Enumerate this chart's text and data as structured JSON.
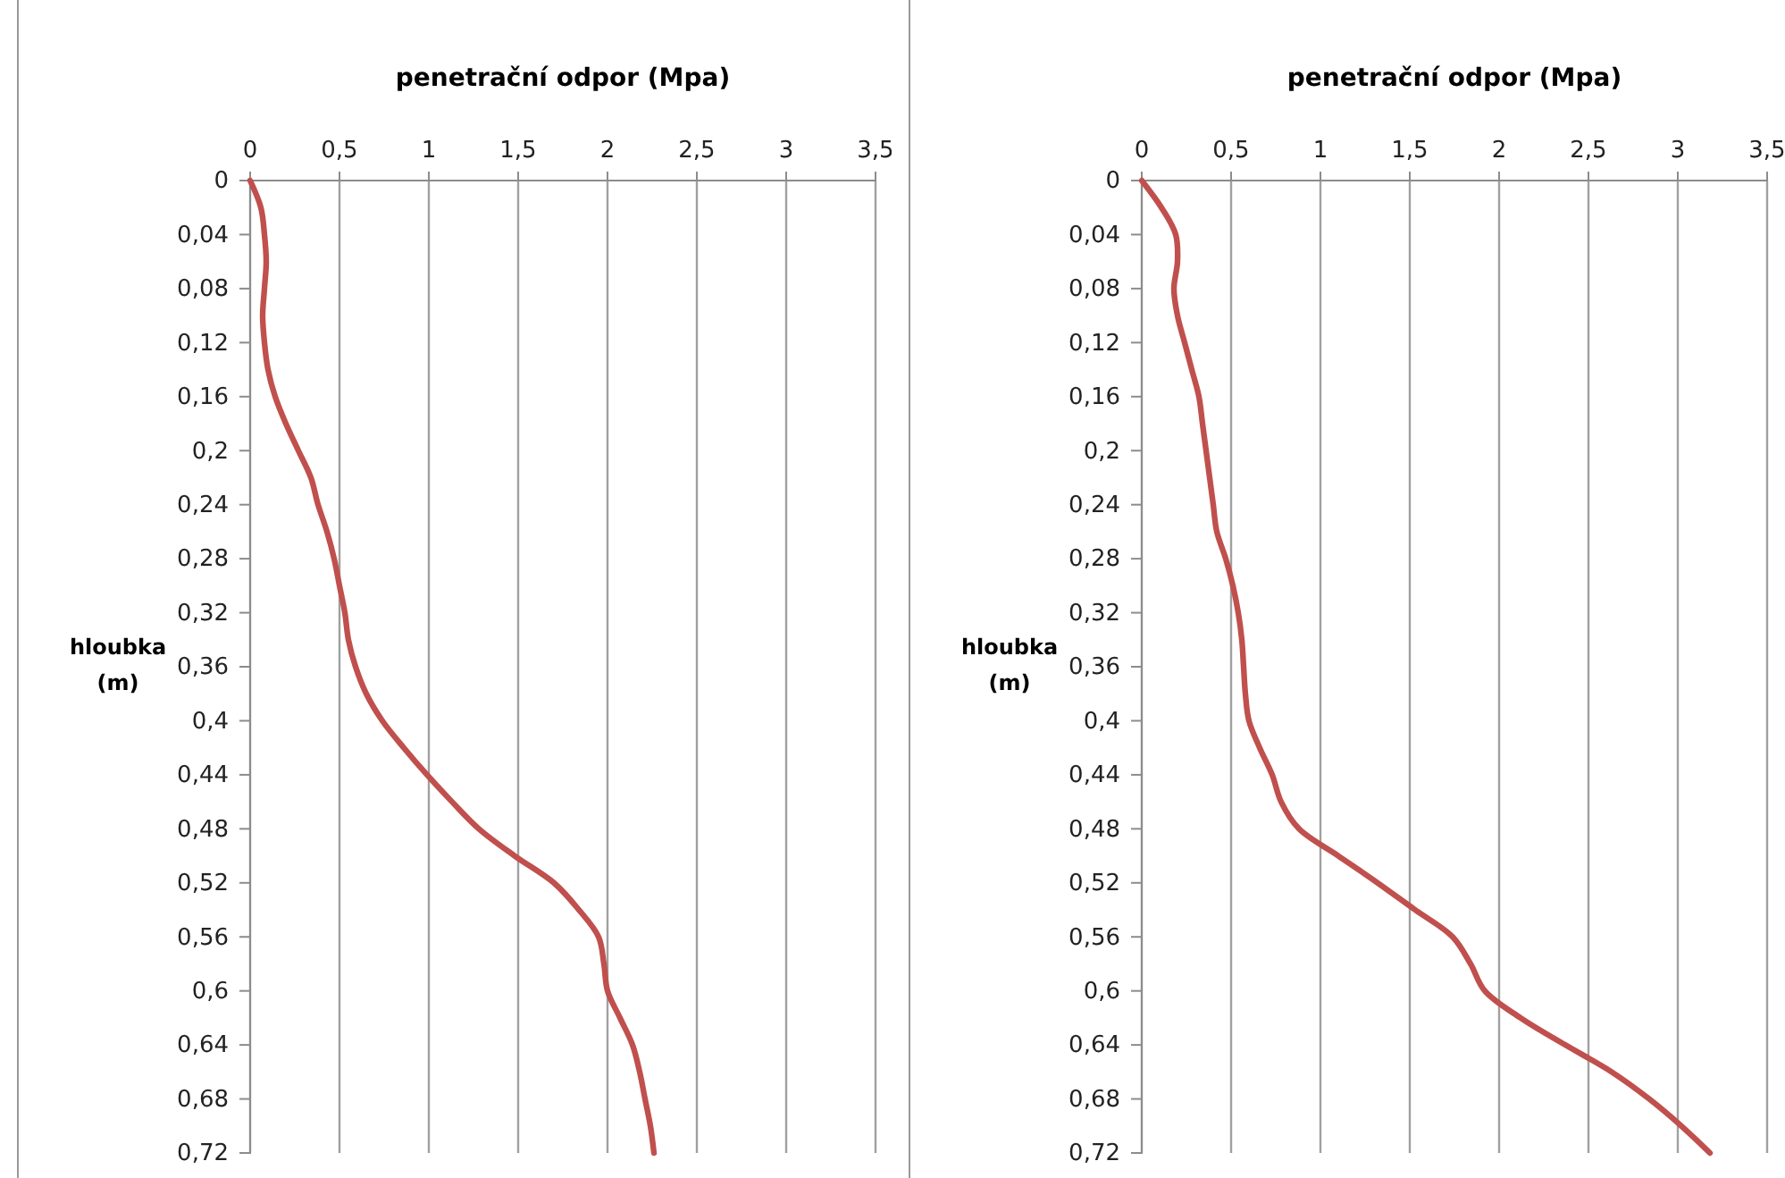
{
  "chart_data": [
    {
      "type": "line",
      "xlabel": "penetrační odpor (Mpa)",
      "ylabel": "hloubka (m)",
      "grid": "x",
      "xlim": [
        0,
        3.5
      ],
      "xticks": [
        0,
        {
          "value": 0.5,
          "label": "0,5"
        },
        1,
        {
          "value": 1.5,
          "label": "1,5"
        },
        2,
        {
          "value": 2.5,
          "label": "2,5"
        },
        3,
        {
          "value": 3.5,
          "label": "3,5"
        }
      ],
      "ylim": [
        0.72,
        0
      ],
      "yticks": [
        0,
        {
          "value": 0.04,
          "label": "0,04"
        },
        {
          "value": 0.08,
          "label": "0,08"
        },
        {
          "value": 0.12,
          "label": "0,12"
        },
        {
          "value": 0.16,
          "label": "0,16"
        },
        {
          "value": 0.2,
          "label": "0,2"
        },
        {
          "value": 0.24,
          "label": "0,24"
        },
        {
          "value": 0.28,
          "label": "0,28"
        },
        {
          "value": 0.32,
          "label": "0,32"
        },
        {
          "value": 0.36,
          "label": "0,36"
        },
        {
          "value": 0.4,
          "label": "0,4"
        },
        {
          "value": 0.44,
          "label": "0,44"
        },
        {
          "value": 0.48,
          "label": "0,48"
        },
        {
          "value": 0.52,
          "label": "0,52"
        },
        {
          "value": 0.56,
          "label": "0,56"
        },
        {
          "value": 0.6,
          "label": "0,6"
        },
        {
          "value": 0.64,
          "label": "0,64"
        },
        {
          "value": 0.68,
          "label": "0,68"
        },
        {
          "value": 0.72,
          "label": "0,72"
        }
      ],
      "series": [
        {
          "color": "#c0504d",
          "x": [
            0,
            0.06,
            0.08,
            0.09,
            0.08,
            0.07,
            0.08,
            0.1,
            0.14,
            0.2,
            0.27,
            0.34,
            0.38,
            0.43,
            0.47,
            0.5,
            0.53,
            0.55,
            0.59,
            0.65,
            0.74,
            0.86,
            0.99,
            1.13,
            1.28,
            1.48,
            1.7,
            1.84,
            1.95,
            1.98,
            2.0,
            2.07,
            2.14,
            2.18,
            2.21,
            2.24,
            2.26
          ],
          "values": [
            0,
            0.02,
            0.04,
            0.06,
            0.08,
            0.1,
            0.12,
            0.14,
            0.16,
            0.18,
            0.2,
            0.22,
            0.24,
            0.26,
            0.28,
            0.3,
            0.32,
            0.34,
            0.36,
            0.38,
            0.4,
            0.42,
            0.44,
            0.46,
            0.48,
            0.5,
            0.52,
            0.54,
            0.56,
            0.58,
            0.6,
            0.62,
            0.64,
            0.66,
            0.68,
            0.7,
            0.72
          ]
        }
      ]
    },
    {
      "type": "line",
      "xlabel": "penetrační odpor (Mpa)",
      "ylabel": "hloubka (m)",
      "grid": "x",
      "xlim": [
        0,
        3.5
      ],
      "xticks": [
        0,
        {
          "value": 0.5,
          "label": "0,5"
        },
        1,
        {
          "value": 1.5,
          "label": "1,5"
        },
        2,
        {
          "value": 2.5,
          "label": "2,5"
        },
        3,
        {
          "value": 3.5,
          "label": "3,5"
        }
      ],
      "ylim": [
        0.72,
        0
      ],
      "yticks": [
        0,
        {
          "value": 0.04,
          "label": "0,04"
        },
        {
          "value": 0.08,
          "label": "0,08"
        },
        {
          "value": 0.12,
          "label": "0,12"
        },
        {
          "value": 0.16,
          "label": "0,16"
        },
        {
          "value": 0.2,
          "label": "0,2"
        },
        {
          "value": 0.24,
          "label": "0,24"
        },
        {
          "value": 0.28,
          "label": "0,28"
        },
        {
          "value": 0.32,
          "label": "0,32"
        },
        {
          "value": 0.36,
          "label": "0,36"
        },
        {
          "value": 0.4,
          "label": "0,4"
        },
        {
          "value": 0.44,
          "label": "0,44"
        },
        {
          "value": 0.48,
          "label": "0,48"
        },
        {
          "value": 0.52,
          "label": "0,52"
        },
        {
          "value": 0.56,
          "label": "0,56"
        },
        {
          "value": 0.6,
          "label": "0,6"
        },
        {
          "value": 0.64,
          "label": "0,64"
        },
        {
          "value": 0.68,
          "label": "0,68"
        },
        {
          "value": 0.72,
          "label": "0,72"
        }
      ],
      "series": [
        {
          "color": "#c0504d",
          "x": [
            0,
            0.11,
            0.19,
            0.2,
            0.18,
            0.2,
            0.24,
            0.28,
            0.32,
            0.34,
            0.36,
            0.38,
            0.4,
            0.42,
            0.47,
            0.51,
            0.54,
            0.56,
            0.57,
            0.58,
            0.6,
            0.66,
            0.73,
            0.78,
            0.88,
            1.1,
            1.32,
            1.53,
            1.74,
            1.84,
            1.92,
            2.12,
            2.37,
            2.63,
            2.84,
            3.02,
            3.18
          ],
          "values": [
            0,
            0.02,
            0.04,
            0.06,
            0.08,
            0.1,
            0.12,
            0.14,
            0.16,
            0.18,
            0.2,
            0.22,
            0.24,
            0.26,
            0.28,
            0.3,
            0.32,
            0.34,
            0.36,
            0.38,
            0.4,
            0.42,
            0.44,
            0.46,
            0.48,
            0.5,
            0.52,
            0.54,
            0.56,
            0.58,
            0.6,
            0.62,
            0.64,
            0.66,
            0.68,
            0.7,
            0.72
          ]
        }
      ]
    }
  ]
}
